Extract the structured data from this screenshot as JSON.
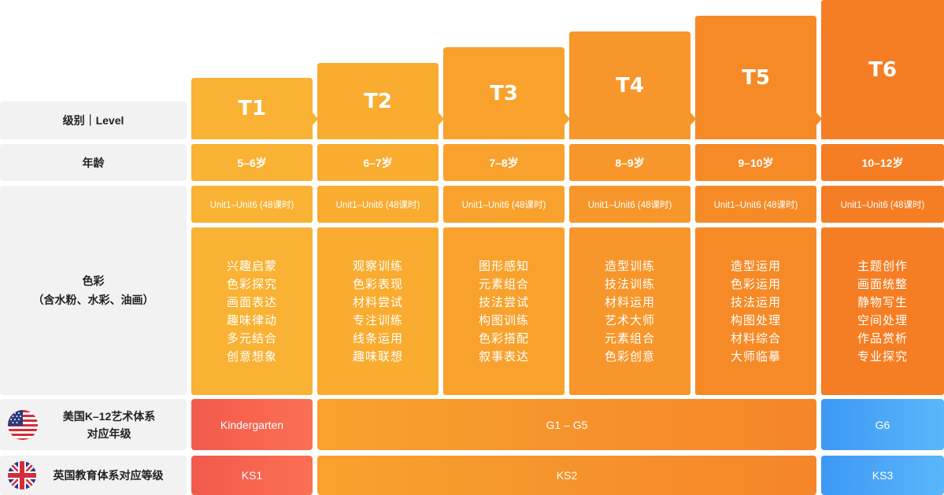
{
  "labels": {
    "level": "级别｜Level",
    "age": "年龄",
    "color_line1": "色彩",
    "color_line2": "（含水粉、水彩、油画）",
    "us_line1": "美国K–12艺术体系",
    "us_line2": "对应年级",
    "uk": "英国教育体系对应等级"
  },
  "levels": [
    {
      "name": "T1",
      "age": "5–6岁",
      "unit": "Unit1–Unit6 (48课时)",
      "topics": [
        "兴趣启蒙",
        "色彩探究",
        "画面表达",
        "趣味律动",
        "多元结合",
        "创意想象"
      ]
    },
    {
      "name": "T2",
      "age": "6–7岁",
      "unit": "Unit1–Unit6 (48课时)",
      "topics": [
        "观察训练",
        "色彩表现",
        "材料尝试",
        "专注训练",
        "线条运用",
        "趣味联想"
      ]
    },
    {
      "name": "T3",
      "age": "7–8岁",
      "unit": "Unit1–Unit6 (48课时)",
      "topics": [
        "图形感知",
        "元素组合",
        "技法尝试",
        "构图训练",
        "色彩搭配",
        "叙事表达"
      ]
    },
    {
      "name": "T4",
      "age": "8–9岁",
      "unit": "Unit1–Unit6 (48课时)",
      "topics": [
        "造型训练",
        "技法训练",
        "材料运用",
        "艺术大师",
        "元素组合",
        "色彩创意"
      ]
    },
    {
      "name": "T5",
      "age": "9–10岁",
      "unit": "Unit1–Unit6 (48课时)",
      "topics": [
        "造型运用",
        "色彩运用",
        "技法运用",
        "构图处理",
        "材料综合",
        "大师临摹"
      ]
    },
    {
      "name": "T6",
      "age": "10–12岁",
      "unit": "Unit1–Unit6 (48课时)",
      "topics": [
        "主题创作",
        "画面统整",
        "静物写生",
        "空间处理",
        "作品赏析",
        "专业探究"
      ]
    }
  ],
  "us_grades": [
    "Kindergarten",
    "G1 – G5",
    "G6"
  ],
  "uk_stages": [
    "KS1",
    "KS2",
    "KS3"
  ],
  "colors": {
    "levels": [
      "#f9b233",
      "#f9ac30",
      "#f8a22d",
      "#f7962a",
      "#f68a27",
      "#f57e24"
    ],
    "red_start": "#f25a4b",
    "red_end": "#fb6f55",
    "orange_start": "#f8a22d",
    "orange_end": "#f5852a",
    "blue_start": "#3d98f4",
    "blue_end": "#5ab6fb",
    "label_bg": "#f2f2f2"
  }
}
